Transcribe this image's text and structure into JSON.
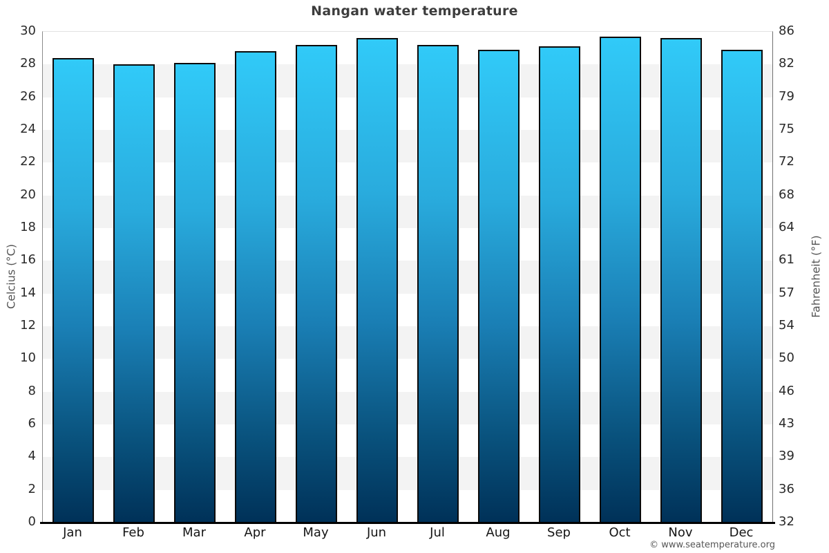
{
  "chart_data": {
    "type": "bar",
    "title": "Nangan water temperature",
    "categories": [
      "Jan",
      "Feb",
      "Mar",
      "Apr",
      "May",
      "Jun",
      "Jul",
      "Aug",
      "Sep",
      "Oct",
      "Nov",
      "Dec"
    ],
    "values": [
      28.4,
      28.0,
      28.1,
      28.8,
      29.2,
      29.6,
      29.2,
      28.9,
      29.1,
      29.7,
      29.6,
      28.9
    ],
    "unit": "°C",
    "ylabel_left": "Celcius (°C)",
    "ylabel_right": "Fahrenheit (°F)",
    "ylim": [
      0,
      30
    ],
    "ytick_step_celsius": 2,
    "yticks_celsius": [
      30,
      28,
      26,
      24,
      22,
      20,
      18,
      16,
      14,
      12,
      10,
      8,
      6,
      4,
      2,
      0
    ],
    "yticks_fahrenheit": [
      86,
      82,
      79,
      75,
      72,
      68,
      64,
      61,
      57,
      54,
      50,
      46,
      43,
      39,
      36,
      32
    ],
    "grid": "alternating horizontal bands every 2°C",
    "legend": "none",
    "colors": {
      "bar_gradient_top": "#31CAF8",
      "bar_gradient_mid": "#1A7FB5",
      "bar_gradient_bottom": "#003158",
      "bar_border": "#0A0A0A",
      "band_gray": "#F3F3F3",
      "background": "#FFFFFF",
      "title_text": "#3D3D3D",
      "tick_text": "#2A2A2A",
      "axis_label_text": "#555555"
    }
  },
  "footer": {
    "copyright": "© www.seatemperature.org"
  }
}
